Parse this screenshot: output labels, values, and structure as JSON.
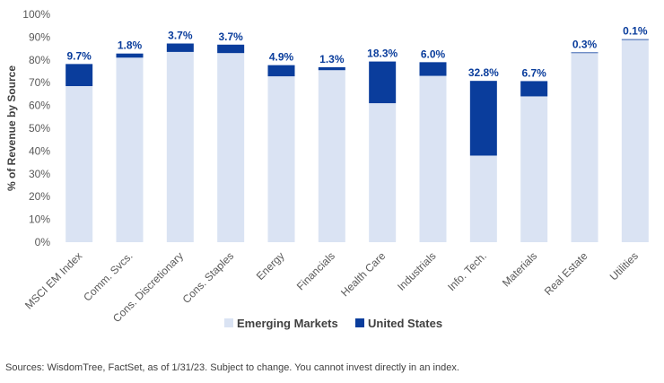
{
  "chart_data": {
    "type": "bar",
    "stacked": true,
    "ylabel": "% of Revenue by Source",
    "ylim": [
      0,
      100
    ],
    "yticks": [
      "0%",
      "10%",
      "20%",
      "30%",
      "40%",
      "50%",
      "60%",
      "70%",
      "80%",
      "90%",
      "100%"
    ],
    "categories": [
      "MSCI EM Index",
      "Comm. Svcs.",
      "Cons. Discretionary",
      "Cons. Staples",
      "Energy",
      "Financials",
      "Health Care",
      "Industrials",
      "Info. Tech.",
      "Materials",
      "Real Estate",
      "Utilities"
    ],
    "series": [
      {
        "name": "Emerging Markets",
        "color": "#dae3f3",
        "values": [
          68.5,
          81.0,
          83.5,
          83.0,
          72.8,
          75.5,
          61.0,
          73.0,
          38.0,
          64.0,
          83.0,
          89.0
        ]
      },
      {
        "name": "United States",
        "color": "#0a3d9c",
        "values": [
          9.7,
          1.8,
          3.7,
          3.7,
          4.9,
          1.3,
          18.3,
          6.0,
          32.8,
          6.7,
          0.3,
          0.1
        ]
      }
    ],
    "data_labels": [
      "9.7%",
      "1.8%",
      "3.7%",
      "3.7%",
      "4.9%",
      "1.3%",
      "18.3%",
      "6.0%",
      "32.8%",
      "6.7%",
      "0.3%",
      "0.1%"
    ],
    "legend": {
      "position": "bottom",
      "entries": [
        "Emerging Markets",
        "United States"
      ]
    }
  },
  "footer": {
    "source": "Sources: WisdomTree, FactSet, as of 1/31/23. Subject to change. You cannot invest directly in an index."
  }
}
